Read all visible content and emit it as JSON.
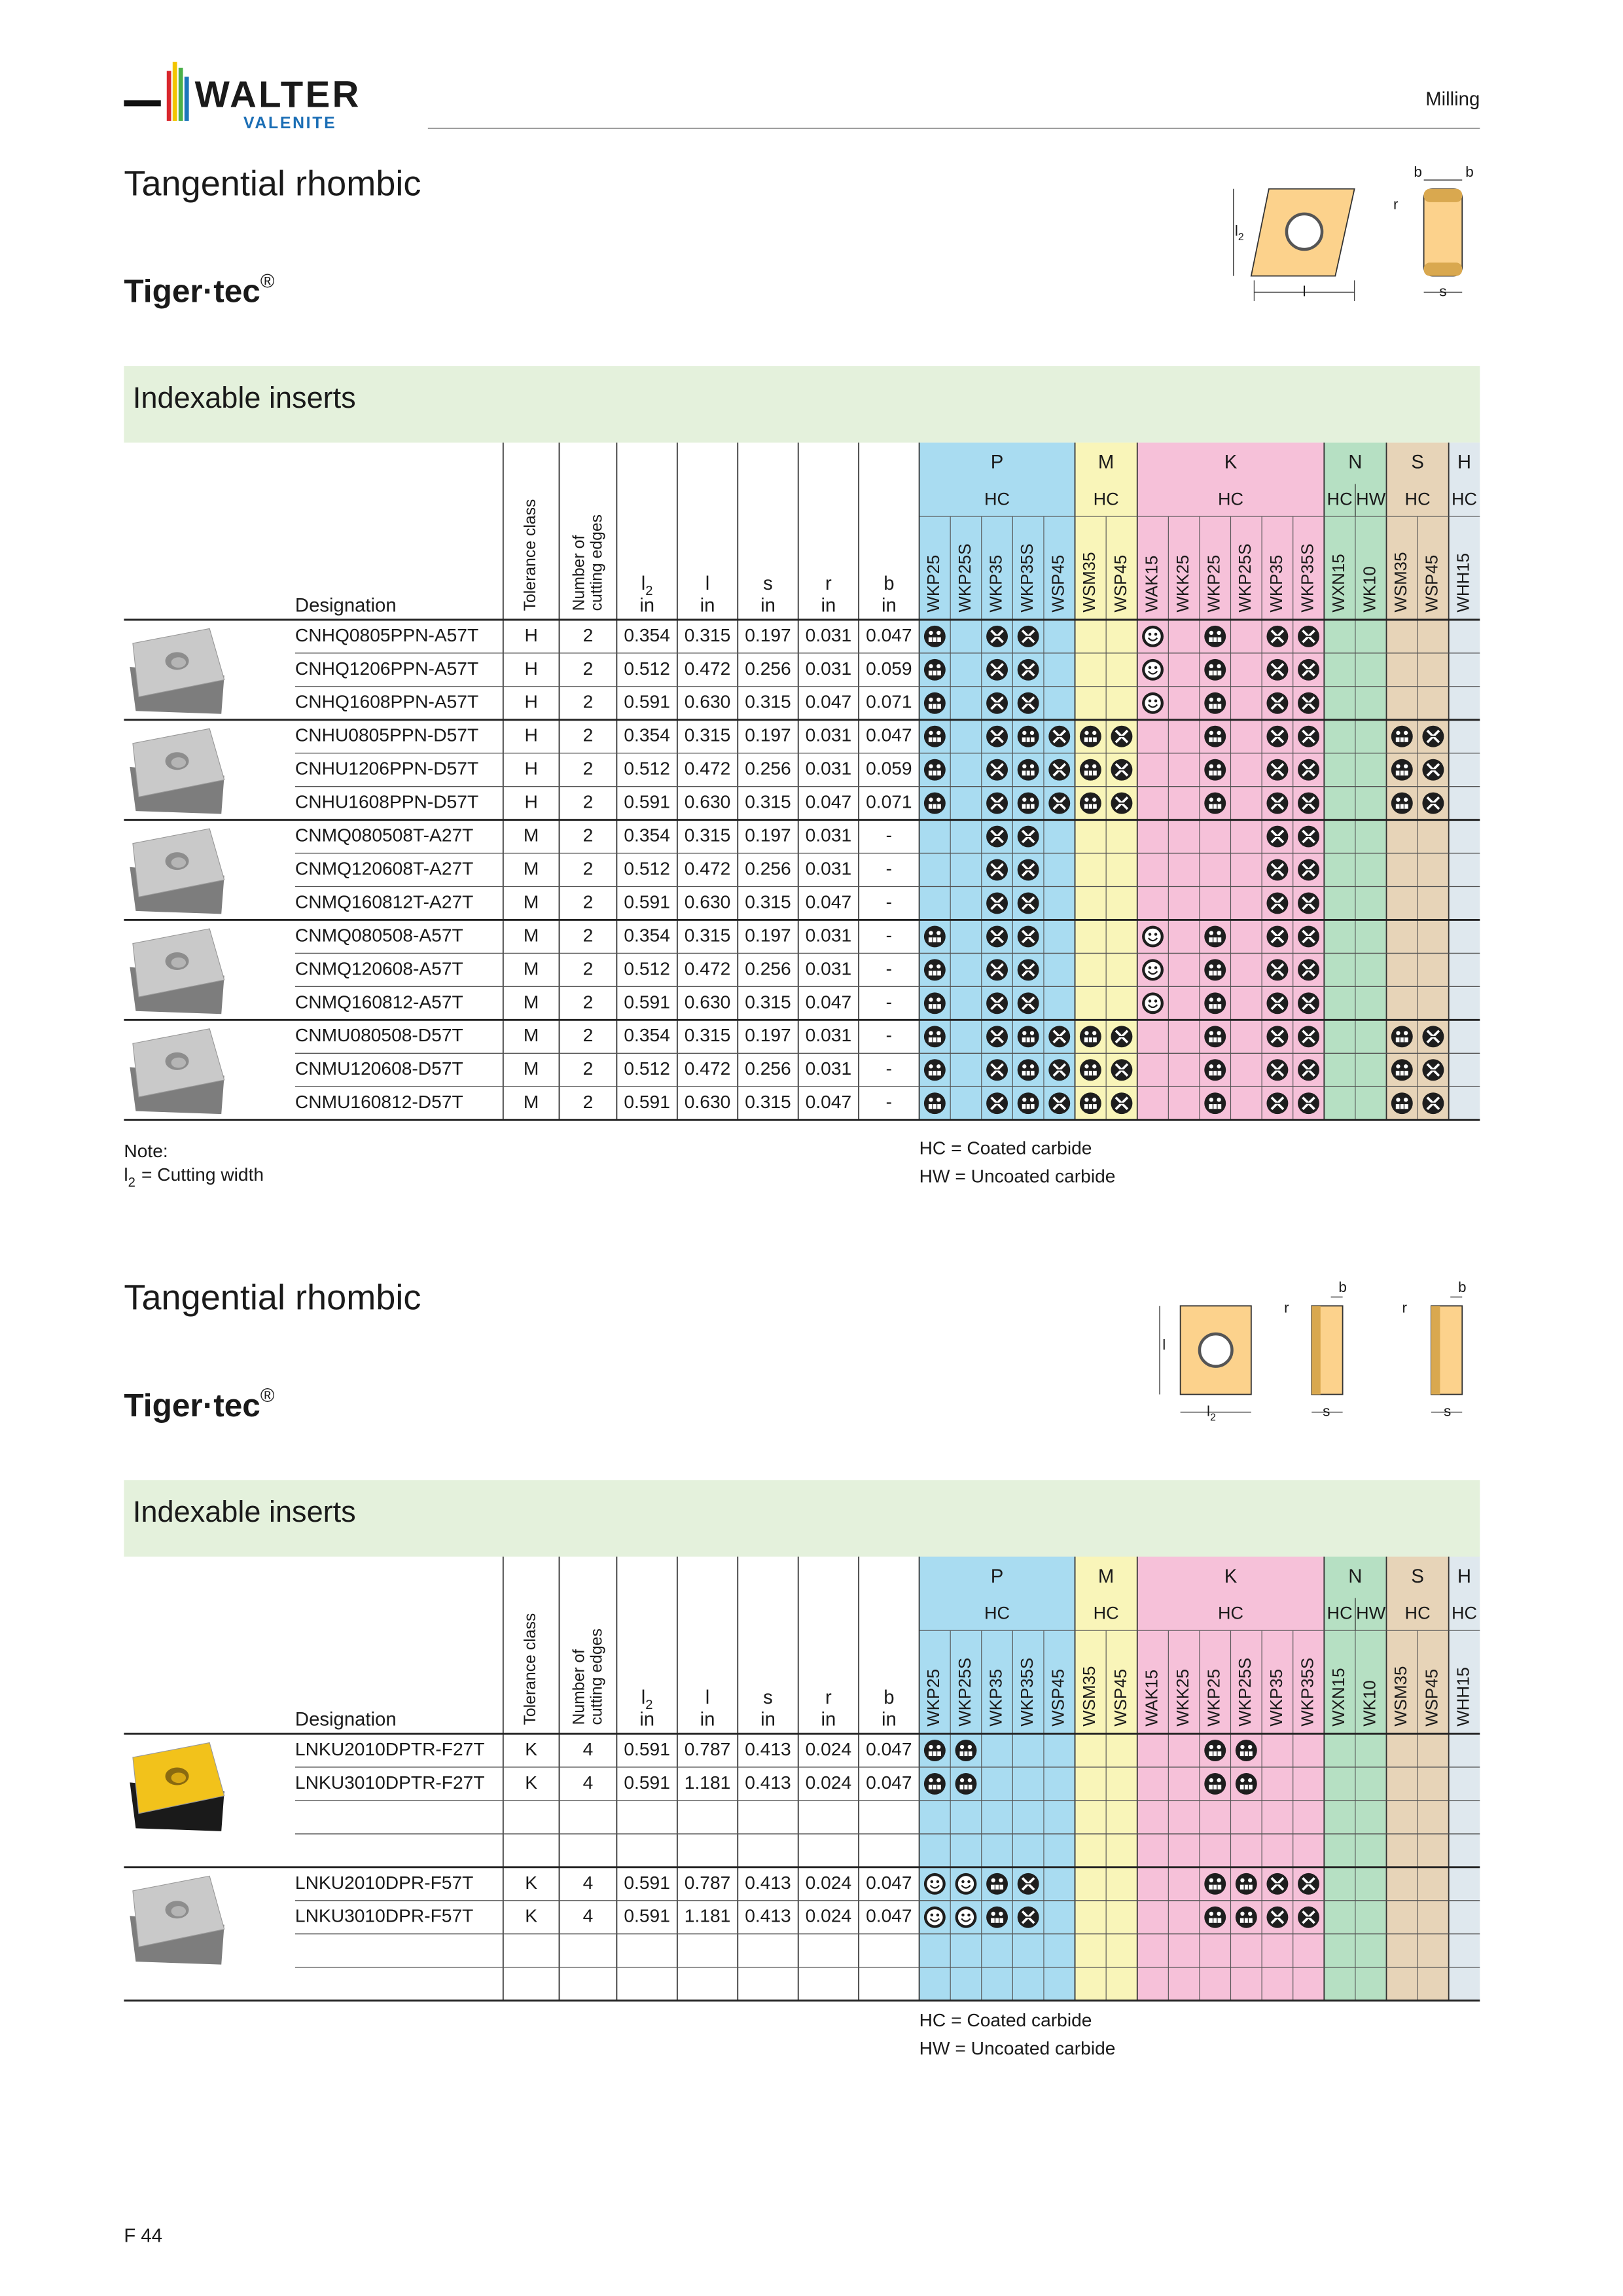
{
  "header": {
    "logo_top": "WALTER",
    "logo_bottom": "VALENITE",
    "section": "Milling"
  },
  "footer": {
    "page": "F 44"
  },
  "legend": [
    "HC = Coated carbide",
    "HW = Uncoated carbide"
  ],
  "sections": [
    {
      "title": "Tangential rhombic",
      "brand": "Tiger·tec",
      "brand_mark": "®",
      "band": "Indexable inserts",
      "diagram": {
        "labels": [
          {
            "text": "b"
          },
          {
            "text": "b"
          },
          {
            "text": "r"
          },
          {
            "text": "l",
            "sub": "2"
          },
          {
            "text": "l"
          },
          {
            "text": "s"
          }
        ]
      },
      "table": {
        "columns": [
          {
            "name": "Designation"
          },
          {
            "name": "Tolerance class"
          },
          {
            "name": "Number of",
            "name2": "cutting edges"
          },
          {
            "name": "l",
            "sub": "2",
            "unit": "in"
          },
          {
            "name": "l",
            "unit": "in"
          },
          {
            "name": "s",
            "unit": "in"
          },
          {
            "name": "r",
            "unit": "in"
          },
          {
            "name": "b",
            "unit": "in"
          }
        ],
        "groups": [
          {
            "name": "P",
            "classes": [
              {
                "name": "HC",
                "grades": [
                  "WKP25",
                  "WKP25S",
                  "WKP35",
                  "WKP35S",
                  "WSP45"
                ]
              }
            ]
          },
          {
            "name": "M",
            "classes": [
              {
                "name": "HC",
                "grades": [
                  "WSM35",
                  "WSP45"
                ]
              }
            ]
          },
          {
            "name": "K",
            "classes": [
              {
                "name": "HC",
                "grades": [
                  "WAK15",
                  "WKK25",
                  "WKP25",
                  "WKP25S",
                  "WKP35",
                  "WKP35S"
                ]
              }
            ]
          },
          {
            "name": "N",
            "classes": [
              {
                "name": "HC",
                "grades": [
                  "WXN15"
                ]
              },
              {
                "name": "HW",
                "grades": [
                  "WK10"
                ]
              }
            ]
          },
          {
            "name": "S",
            "classes": [
              {
                "name": "HC",
                "grades": [
                  "WSM35",
                  "WSP45"
                ]
              }
            ]
          },
          {
            "name": "H",
            "classes": [
              {
                "name": "HC",
                "grades": [
                  "WHH15"
                ]
              }
            ]
          }
        ],
        "rows": [
          [
            "CNHQ0805PPN-A57T",
            "H",
            "2",
            "0.354",
            "0.315",
            "0.197",
            "0.031",
            "0.047"
          ],
          [
            "CNHQ1206PPN-A57T",
            "H",
            "2",
            "0.512",
            "0.472",
            "0.256",
            "0.031",
            "0.059"
          ],
          [
            "CNHQ1608PPN-A57T",
            "H",
            "2",
            "0.591",
            "0.630",
            "0.315",
            "0.047",
            "0.071"
          ],
          [
            "CNHU0805PPN-D57T",
            "H",
            "2",
            "0.354",
            "0.315",
            "0.197",
            "0.031",
            "0.047"
          ],
          [
            "CNHU1206PPN-D57T",
            "H",
            "2",
            "0.512",
            "0.472",
            "0.256",
            "0.031",
            "0.059"
          ],
          [
            "CNHU1608PPN-D57T",
            "H",
            "2",
            "0.591",
            "0.630",
            "0.315",
            "0.047",
            "0.071"
          ],
          [
            "CNMQ080508T-A27T",
            "M",
            "2",
            "0.354",
            "0.315",
            "0.197",
            "0.031",
            "-"
          ],
          [
            "CNMQ120608T-A27T",
            "M",
            "2",
            "0.512",
            "0.472",
            "0.256",
            "0.031",
            "-"
          ],
          [
            "CNMQ160812T-A27T",
            "M",
            "2",
            "0.591",
            "0.630",
            "0.315",
            "0.047",
            "-"
          ],
          [
            "CNMQ080508-A57T",
            "M",
            "2",
            "0.354",
            "0.315",
            "0.197",
            "0.031",
            "-"
          ],
          [
            "CNMQ120608-A57T",
            "M",
            "2",
            "0.512",
            "0.472",
            "0.256",
            "0.031",
            "-"
          ],
          [
            "CNMQ160812-A57T",
            "M",
            "2",
            "0.591",
            "0.630",
            "0.315",
            "0.047",
            "-"
          ],
          [
            "CNMU080508-D57T",
            "M",
            "2",
            "0.354",
            "0.315",
            "0.197",
            "0.031",
            "-"
          ],
          [
            "CNMU120608-D57T",
            "M",
            "2",
            "0.512",
            "0.472",
            "0.256",
            "0.031",
            "-"
          ],
          [
            "CNMU160812-D57T",
            "M",
            "2",
            "0.591",
            "0.630",
            "0.315",
            "0.047",
            "-"
          ]
        ]
      },
      "note": {
        "title": "Note:",
        "symbol": "l",
        "sub": "2",
        "text": "= Cutting width"
      }
    },
    {
      "title": "Tangential rhombic",
      "brand": "Tiger·tec",
      "brand_mark": "®",
      "band": "Indexable inserts",
      "diagram": {
        "labels": [
          {
            "text": "b"
          },
          {
            "text": "r"
          },
          {
            "text": "l"
          },
          {
            "text": "l",
            "sub": "2"
          },
          {
            "text": "s"
          },
          {
            "text": "b"
          },
          {
            "text": "r"
          },
          {
            "text": "s"
          }
        ]
      },
      "table": {
        "columns": [
          {
            "name": "Designation"
          },
          {
            "name": "Tolerance class"
          },
          {
            "name": "Number of",
            "name2": "cutting edges"
          },
          {
            "name": "l",
            "sub": "2",
            "unit": "in"
          },
          {
            "name": "l",
            "unit": "in"
          },
          {
            "name": "s",
            "unit": "in"
          },
          {
            "name": "r",
            "unit": "in"
          },
          {
            "name": "b",
            "unit": "in"
          }
        ],
        "groups": [
          {
            "name": "P",
            "classes": [
              {
                "name": "HC",
                "grades": [
                  "WKP25",
                  "WKP25S",
                  "WKP35",
                  "WKP35S",
                  "WSP45"
                ]
              }
            ]
          },
          {
            "name": "M",
            "classes": [
              {
                "name": "HC",
                "grades": [
                  "WSM35",
                  "WSP45"
                ]
              }
            ]
          },
          {
            "name": "K",
            "classes": [
              {
                "name": "HC",
                "grades": [
                  "WAK15",
                  "WKK25",
                  "WKP25",
                  "WKP25S",
                  "WKP35",
                  "WKP35S"
                ]
              }
            ]
          },
          {
            "name": "N",
            "classes": [
              {
                "name": "HC",
                "grades": [
                  "WXN15"
                ]
              },
              {
                "name": "HW",
                "grades": [
                  "WK10"
                ]
              }
            ]
          },
          {
            "name": "S",
            "classes": [
              {
                "name": "HC",
                "grades": [
                  "WSM35",
                  "WSP45"
                ]
              }
            ]
          },
          {
            "name": "H",
            "classes": [
              {
                "name": "HC",
                "grades": [
                  "WHH15"
                ]
              }
            ]
          }
        ],
        "rows": [
          [
            "LNKU2010DPTR-F27T",
            "K",
            "4",
            "0.591",
            "0.787",
            "0.413",
            "0.024",
            "0.047"
          ],
          [
            "LNKU3010DPTR-F27T",
            "K",
            "4",
            "0.591",
            "1.181",
            "0.413",
            "0.024",
            "0.047"
          ],
          [
            "LNKU2010DPR-F57T",
            "K",
            "4",
            "0.591",
            "0.787",
            "0.413",
            "0.024",
            "0.047"
          ],
          [
            "LNKU3010DPR-F57T",
            "K",
            "4",
            "0.591",
            "1.181",
            "0.413",
            "0.024",
            "0.047"
          ]
        ]
      }
    }
  ]
}
